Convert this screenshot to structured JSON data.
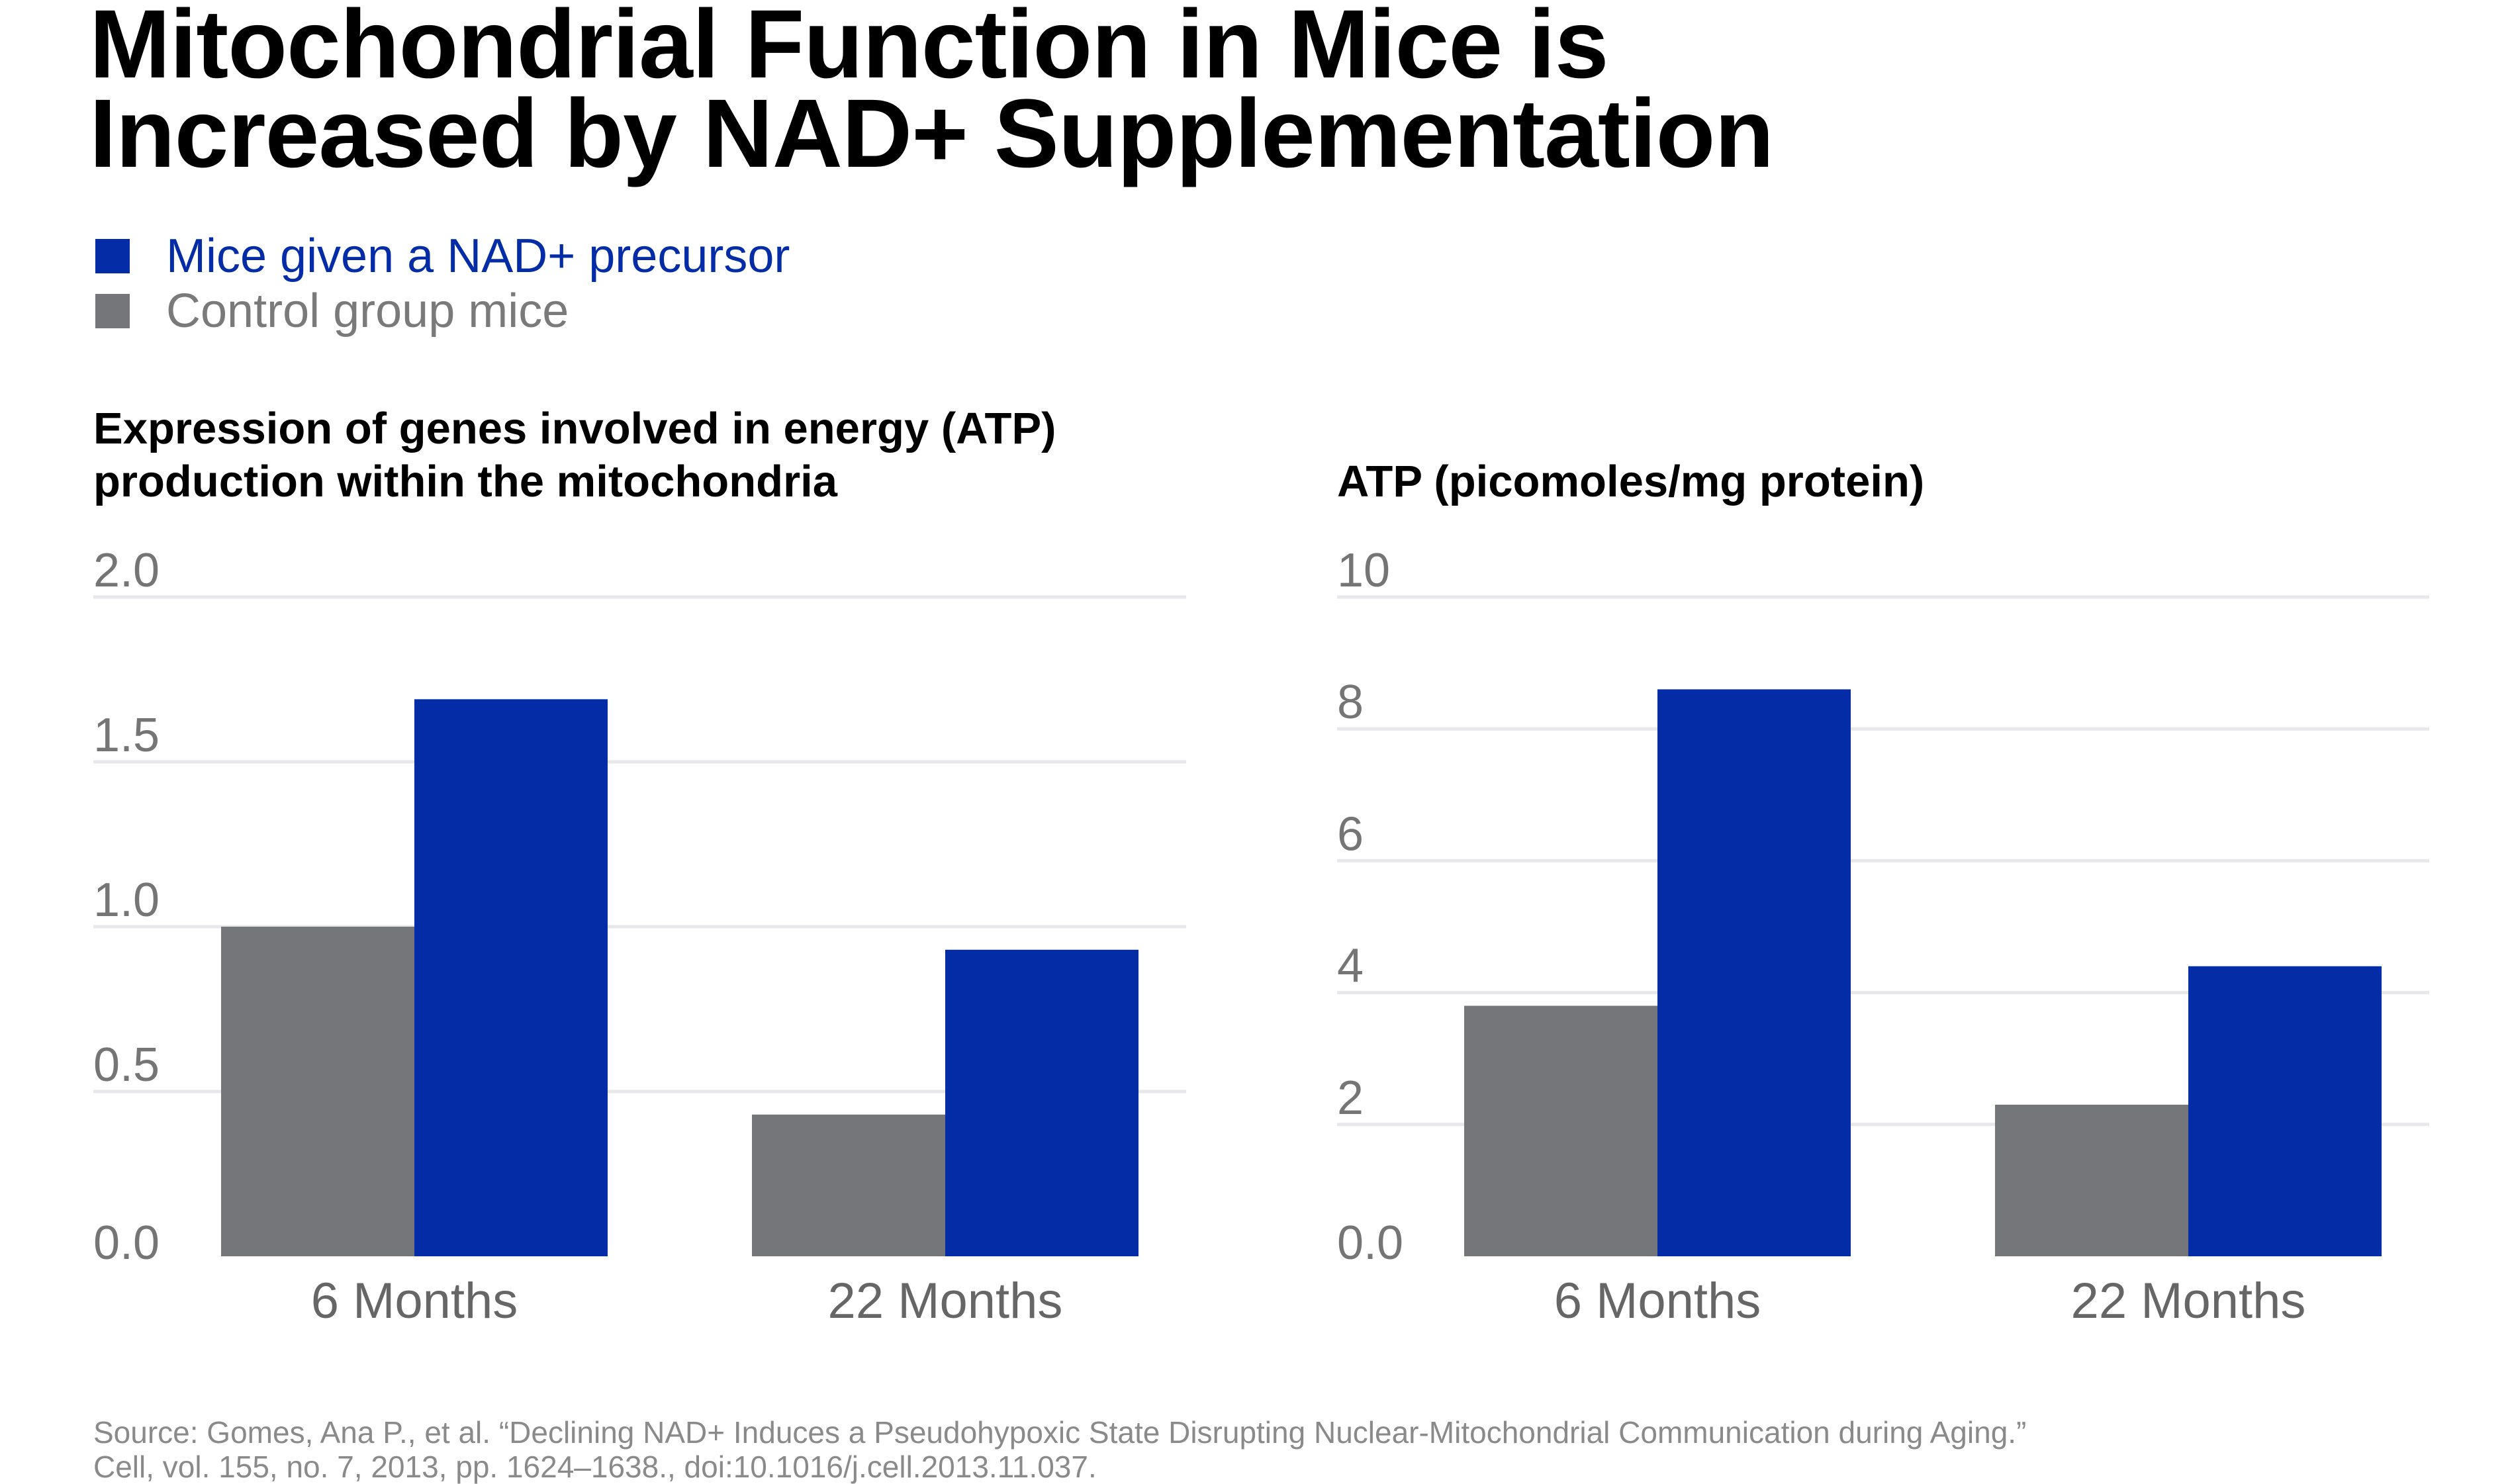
{
  "title_line1": "Mitochondrial Function in Mice is",
  "title_line2": "Increased by NAD+ Supplementation",
  "legend": [
    {
      "label": "Mice given a NAD+ precursor",
      "color": "#042ca6",
      "text_color": "#042ca6"
    },
    {
      "label": "Control group mice",
      "color": "#757679",
      "text_color": "#7a7a7a"
    }
  ],
  "source_line1": "Source: Gomes, Ana P., et al. “Declining NAD+ Induces a Pseudohypoxic State Disrupting Nuclear-Mitochondrial Communication during Aging.”",
  "source_line2": "Cell, vol. 155, no. 7, 2013, pp. 1624–1638., doi:10.1016/j.cell.2013.11.037.",
  "chart_data": [
    {
      "type": "bar",
      "title_line1": "Expression of genes involved in energy (ATP)",
      "title_line2": "production within the mitochondria",
      "categories": [
        "6 Months",
        "22 Months"
      ],
      "series": [
        {
          "name": "Control group mice",
          "values": [
            1.0,
            0.43
          ],
          "color": "#757679"
        },
        {
          "name": "Mice given a NAD+ precursor",
          "values": [
            1.69,
            0.93
          ],
          "color": "#042ca6"
        }
      ],
      "ylim": [
        0,
        2
      ],
      "yticks": [
        "0.0",
        "0.5",
        "1.0",
        "1.5",
        "2.0"
      ],
      "ytick_values": [
        0,
        0.5,
        1.0,
        1.5,
        2.0
      ],
      "grid": true
    },
    {
      "type": "bar",
      "title": "ATP (picomoles/mg protein)",
      "categories": [
        "6 Months",
        "22 Months"
      ],
      "series": [
        {
          "name": "Control group mice",
          "values": [
            3.8,
            2.3
          ],
          "color": "#757679"
        },
        {
          "name": "Mice given a NAD+ precursor",
          "values": [
            8.6,
            4.4
          ],
          "color": "#042ca6"
        }
      ],
      "ylim": [
        0,
        10
      ],
      "yticks": [
        "0.0",
        "2",
        "4",
        "6",
        "8",
        "10"
      ],
      "ytick_values": [
        0,
        2,
        4,
        6,
        8,
        10
      ],
      "grid": true
    }
  ]
}
